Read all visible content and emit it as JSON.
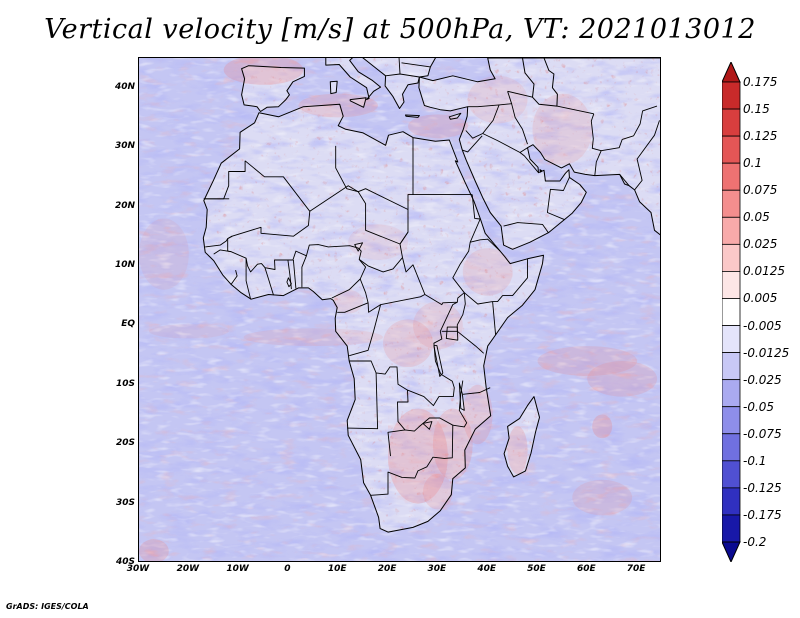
{
  "title": "Vertical velocity [m/s] at 500hPa, VT: 2021013012",
  "credit": "GrADS: IGES/COLA",
  "map": {
    "lat_labels": [
      "40N",
      "30N",
      "20N",
      "10N",
      "EQ",
      "10S",
      "20S",
      "30S",
      "40S"
    ],
    "lon_labels": [
      "30W",
      "20W",
      "10W",
      "0",
      "10E",
      "20E",
      "30E",
      "40E",
      "50E",
      "60E",
      "70E"
    ],
    "lat_range": [
      -40,
      45
    ],
    "lon_range": [
      -30,
      75
    ]
  },
  "colorbar": {
    "labels": [
      "0.175",
      "0.15",
      "0.125",
      "0.1",
      "0.075",
      "0.05",
      "0.025",
      "0.0125",
      "0.005",
      "-0.005",
      "-0.0125",
      "-0.025",
      "-0.05",
      "-0.075",
      "-0.1",
      "-0.125",
      "-0.175",
      "-0.2"
    ],
    "colors": [
      "#b01818",
      "#c82a2a",
      "#d83e3e",
      "#e45656",
      "#ee7272",
      "#f48e8e",
      "#f8aaaa",
      "#fbc8c8",
      "#fde6e6",
      "#ffffff",
      "#e4e4fb",
      "#c8c8f6",
      "#aaaaf0",
      "#8e8eea",
      "#7070e0",
      "#5050d2",
      "#3030c0",
      "#1818a8",
      "#0a0a90"
    ]
  },
  "fields": {
    "ocean_color": "#c4c6f3",
    "land_color": "#dcdcf4",
    "coast_color": "#000000"
  }
}
